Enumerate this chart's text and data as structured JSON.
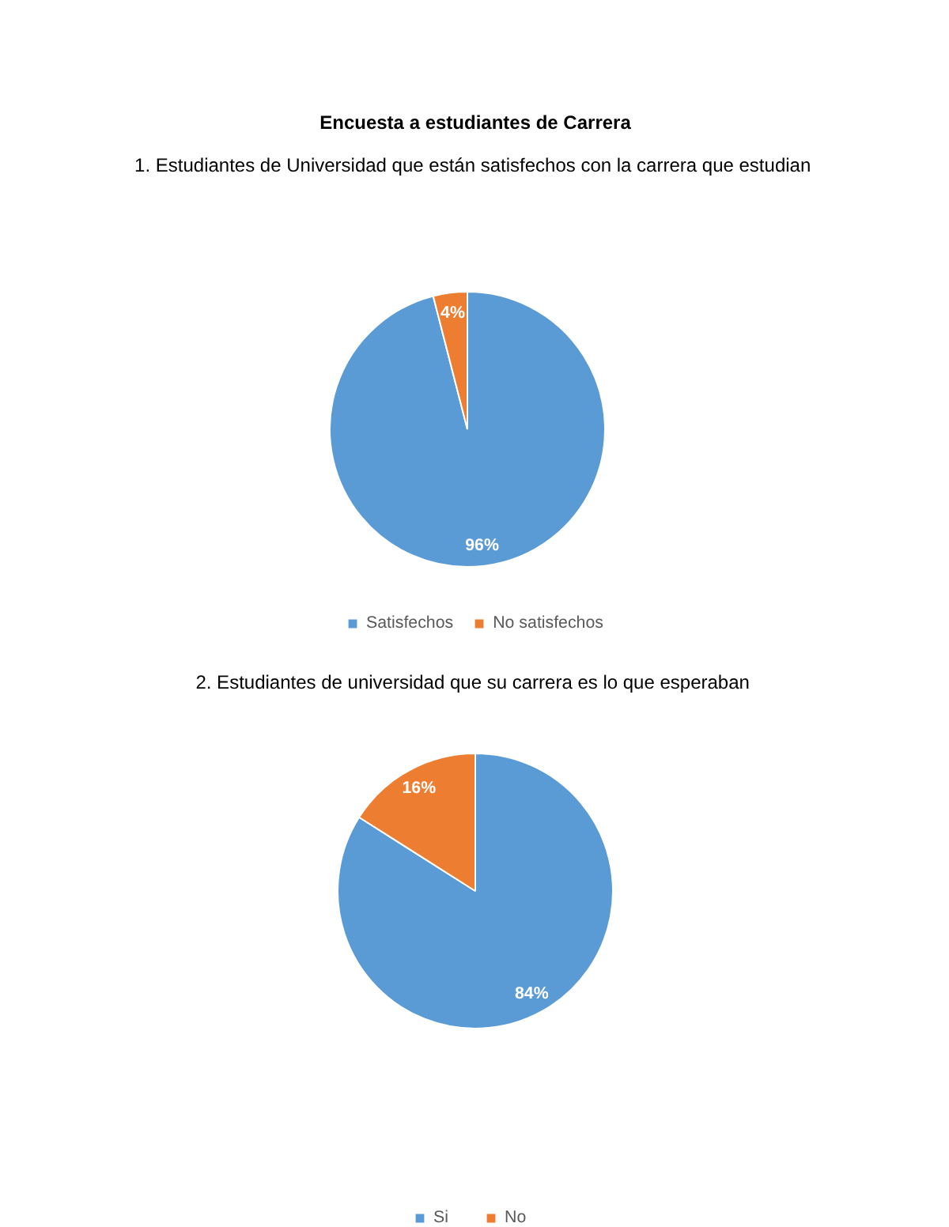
{
  "chart_data": [
    {
      "type": "pie",
      "title": "Encuesta a estudiantes de Carrera",
      "subtitle": "1.  Estudiantes de Universidad que están satisfechos con la carrera que estudian",
      "categories": [
        "Satisfechos",
        "No satisfechos"
      ],
      "values": [
        96,
        4
      ],
      "colors": [
        "#5b9bd5",
        "#ed7d31"
      ],
      "value_labels": [
        "96%",
        "4%"
      ],
      "legend": "bottom"
    },
    {
      "type": "pie",
      "title": "2.  Estudiantes de universidad que su carrera es lo que esperaban",
      "categories": [
        "Si",
        "No"
      ],
      "values": [
        84,
        16
      ],
      "colors": [
        "#5b9bd5",
        "#ed7d31"
      ],
      "value_labels": [
        "84%",
        "16%"
      ],
      "legend": "bottom"
    }
  ]
}
